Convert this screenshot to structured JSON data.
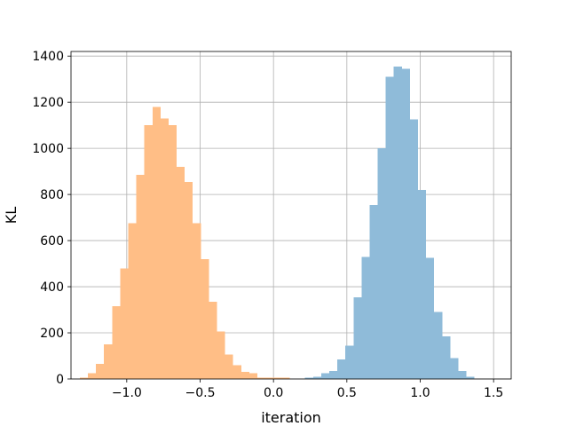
{
  "chart_data": {
    "type": "bar",
    "subtype": "histogram",
    "title": "",
    "xlabel": "iteration",
    "ylabel": "KL",
    "xlim": [
      -1.38,
      1.62
    ],
    "ylim": [
      0,
      1420
    ],
    "x_ticks": [
      -1.0,
      -0.5,
      0.0,
      0.5,
      1.0,
      1.5
    ],
    "x_tick_labels": [
      "−1.0",
      "−0.5",
      "0.0",
      "0.5",
      "1.0",
      "1.5"
    ],
    "y_ticks": [
      0,
      200,
      400,
      600,
      800,
      1000,
      1200,
      1400
    ],
    "y_tick_labels": [
      "0",
      "200",
      "400",
      "600",
      "800",
      "1000",
      "1200",
      "1400"
    ],
    "grid": true,
    "legend": "none",
    "series": [
      {
        "color": "#ffbe86",
        "bins": [
          {
            "x0": -1.32,
            "x1": -1.265,
            "value": 5
          },
          {
            "x0": -1.265,
            "x1": -1.21,
            "value": 25
          },
          {
            "x0": -1.21,
            "x1": -1.155,
            "value": 65
          },
          {
            "x0": -1.155,
            "x1": -1.1,
            "value": 150
          },
          {
            "x0": -1.1,
            "x1": -1.045,
            "value": 315
          },
          {
            "x0": -1.045,
            "x1": -0.99,
            "value": 480
          },
          {
            "x0": -0.99,
            "x1": -0.935,
            "value": 675
          },
          {
            "x0": -0.935,
            "x1": -0.88,
            "value": 885
          },
          {
            "x0": -0.88,
            "x1": -0.825,
            "value": 1100
          },
          {
            "x0": -0.825,
            "x1": -0.77,
            "value": 1180
          },
          {
            "x0": -0.77,
            "x1": -0.715,
            "value": 1130
          },
          {
            "x0": -0.715,
            "x1": -0.66,
            "value": 1100
          },
          {
            "x0": -0.66,
            "x1": -0.605,
            "value": 920
          },
          {
            "x0": -0.605,
            "x1": -0.55,
            "value": 855
          },
          {
            "x0": -0.55,
            "x1": -0.495,
            "value": 675
          },
          {
            "x0": -0.495,
            "x1": -0.44,
            "value": 520
          },
          {
            "x0": -0.44,
            "x1": -0.385,
            "value": 335
          },
          {
            "x0": -0.385,
            "x1": -0.33,
            "value": 205
          },
          {
            "x0": -0.33,
            "x1": -0.275,
            "value": 105
          },
          {
            "x0": -0.275,
            "x1": -0.22,
            "value": 60
          },
          {
            "x0": -0.22,
            "x1": -0.165,
            "value": 30
          },
          {
            "x0": -0.165,
            "x1": -0.11,
            "value": 25
          },
          {
            "x0": -0.11,
            "x1": -0.055,
            "value": 5
          },
          {
            "x0": -0.055,
            "x1": 0.0,
            "value": 5
          },
          {
            "x0": 0.0,
            "x1": 0.055,
            "value": 5
          },
          {
            "x0": 0.055,
            "x1": 0.11,
            "value": 5
          }
        ]
      },
      {
        "color": "#8fbbd9",
        "bins": [
          {
            "x0": 0.215,
            "x1": 0.27,
            "value": 5
          },
          {
            "x0": 0.27,
            "x1": 0.325,
            "value": 10
          },
          {
            "x0": 0.325,
            "x1": 0.38,
            "value": 25
          },
          {
            "x0": 0.38,
            "x1": 0.435,
            "value": 35
          },
          {
            "x0": 0.435,
            "x1": 0.49,
            "value": 85
          },
          {
            "x0": 0.49,
            "x1": 0.545,
            "value": 145
          },
          {
            "x0": 0.545,
            "x1": 0.6,
            "value": 355
          },
          {
            "x0": 0.6,
            "x1": 0.655,
            "value": 530
          },
          {
            "x0": 0.655,
            "x1": 0.71,
            "value": 755
          },
          {
            "x0": 0.71,
            "x1": 0.765,
            "value": 1000
          },
          {
            "x0": 0.765,
            "x1": 0.82,
            "value": 1310
          },
          {
            "x0": 0.82,
            "x1": 0.875,
            "value": 1355
          },
          {
            "x0": 0.875,
            "x1": 0.93,
            "value": 1345
          },
          {
            "x0": 0.93,
            "x1": 0.985,
            "value": 1125
          },
          {
            "x0": 0.985,
            "x1": 1.04,
            "value": 820
          },
          {
            "x0": 1.04,
            "x1": 1.095,
            "value": 525
          },
          {
            "x0": 1.095,
            "x1": 1.15,
            "value": 290
          },
          {
            "x0": 1.15,
            "x1": 1.205,
            "value": 185
          },
          {
            "x0": 1.205,
            "x1": 1.26,
            "value": 90
          },
          {
            "x0": 1.26,
            "x1": 1.315,
            "value": 35
          },
          {
            "x0": 1.315,
            "x1": 1.37,
            "value": 10
          }
        ]
      }
    ]
  }
}
